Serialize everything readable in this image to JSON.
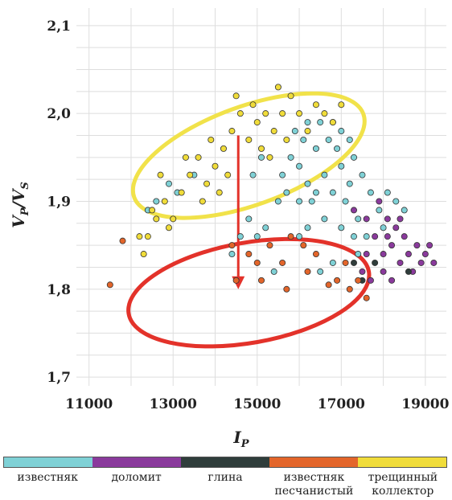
{
  "chart_data": {
    "type": "scatter",
    "xlabel": "I",
    "xlabel_sub": "P",
    "ylabel_parts": [
      "V",
      "P",
      "/V",
      "S"
    ],
    "xlim": [
      10700,
      19500
    ],
    "ylim": [
      1.69,
      2.12
    ],
    "x_ticks": [
      11000,
      13000,
      15000,
      17000,
      19000
    ],
    "x_tick_labels": [
      "11000",
      "13000",
      "15000",
      "17000",
      "19000"
    ],
    "y_ticks": [
      1.7,
      1.8,
      1.9,
      2.0,
      2.1
    ],
    "y_tick_labels": [
      "1,7",
      "1,8",
      "1,9",
      "2,0",
      "2,1"
    ],
    "grid": true,
    "series": [
      {
        "name": "известняк",
        "color": "#7fd1d6",
        "points": [
          {
            "x": 15600,
            "y": 1.93
          },
          {
            "x": 15800,
            "y": 1.95
          },
          {
            "x": 16000,
            "y": 1.94
          },
          {
            "x": 16200,
            "y": 1.92
          },
          {
            "x": 16400,
            "y": 1.96
          },
          {
            "x": 16600,
            "y": 1.93
          },
          {
            "x": 16800,
            "y": 1.91
          },
          {
            "x": 17000,
            "y": 1.94
          },
          {
            "x": 17200,
            "y": 1.92
          },
          {
            "x": 16100,
            "y": 1.97
          },
          {
            "x": 16300,
            "y": 1.9
          },
          {
            "x": 16700,
            "y": 1.97
          },
          {
            "x": 16900,
            "y": 1.96
          },
          {
            "x": 17100,
            "y": 1.9
          },
          {
            "x": 17300,
            "y": 1.95
          },
          {
            "x": 15500,
            "y": 1.9
          },
          {
            "x": 15700,
            "y": 1.91
          },
          {
            "x": 16500,
            "y": 1.99
          },
          {
            "x": 17500,
            "y": 1.93
          },
          {
            "x": 17700,
            "y": 1.91
          },
          {
            "x": 17900,
            "y": 1.89
          },
          {
            "x": 18100,
            "y": 1.91
          },
          {
            "x": 18300,
            "y": 1.9
          },
          {
            "x": 18500,
            "y": 1.89
          },
          {
            "x": 17400,
            "y": 1.88
          },
          {
            "x": 15200,
            "y": 1.87
          },
          {
            "x": 15000,
            "y": 1.86
          },
          {
            "x": 14800,
            "y": 1.88
          },
          {
            "x": 14600,
            "y": 1.86
          },
          {
            "x": 14400,
            "y": 1.84
          },
          {
            "x": 16000,
            "y": 1.86
          },
          {
            "x": 16200,
            "y": 1.87
          },
          {
            "x": 16600,
            "y": 1.88
          },
          {
            "x": 17000,
            "y": 1.87
          },
          {
            "x": 17300,
            "y": 1.86
          },
          {
            "x": 15900,
            "y": 1.98
          },
          {
            "x": 16200,
            "y": 1.99
          },
          {
            "x": 16800,
            "y": 1.99
          },
          {
            "x": 17000,
            "y": 1.98
          },
          {
            "x": 17200,
            "y": 1.97
          },
          {
            "x": 12600,
            "y": 1.9
          },
          {
            "x": 12900,
            "y": 1.92
          },
          {
            "x": 13100,
            "y": 1.91
          },
          {
            "x": 13500,
            "y": 1.93
          },
          {
            "x": 12400,
            "y": 1.89
          },
          {
            "x": 16800,
            "y": 1.83
          },
          {
            "x": 16500,
            "y": 1.82
          },
          {
            "x": 17400,
            "y": 1.84
          },
          {
            "x": 17600,
            "y": 1.86
          },
          {
            "x": 18000,
            "y": 1.87
          },
          {
            "x": 15400,
            "y": 1.82
          },
          {
            "x": 14900,
            "y": 1.93
          },
          {
            "x": 15100,
            "y": 1.95
          },
          {
            "x": 16400,
            "y": 1.91
          },
          {
            "x": 16000,
            "y": 1.9
          }
        ]
      },
      {
        "name": "доломит",
        "color": "#8a3a9c",
        "points": [
          {
            "x": 17800,
            "y": 1.86
          },
          {
            "x": 18000,
            "y": 1.84
          },
          {
            "x": 18200,
            "y": 1.85
          },
          {
            "x": 18400,
            "y": 1.83
          },
          {
            "x": 18600,
            "y": 1.84
          },
          {
            "x": 18800,
            "y": 1.85
          },
          {
            "x": 19000,
            "y": 1.84
          },
          {
            "x": 19200,
            "y": 1.83
          },
          {
            "x": 17600,
            "y": 1.88
          },
          {
            "x": 17900,
            "y": 1.9
          },
          {
            "x": 18100,
            "y": 1.88
          },
          {
            "x": 18300,
            "y": 1.87
          },
          {
            "x": 18500,
            "y": 1.86
          },
          {
            "x": 18700,
            "y": 1.82
          },
          {
            "x": 18900,
            "y": 1.83
          },
          {
            "x": 17500,
            "y": 1.82
          },
          {
            "x": 17700,
            "y": 1.81
          },
          {
            "x": 18000,
            "y": 1.82
          },
          {
            "x": 18200,
            "y": 1.81
          },
          {
            "x": 17300,
            "y": 1.89
          },
          {
            "x": 18400,
            "y": 1.88
          },
          {
            "x": 17600,
            "y": 1.84
          },
          {
            "x": 18100,
            "y": 1.86
          },
          {
            "x": 19100,
            "y": 1.85
          }
        ]
      },
      {
        "name": "глина",
        "color": "#2f3d3b",
        "points": [
          {
            "x": 17300,
            "y": 1.83
          },
          {
            "x": 17500,
            "y": 1.81
          },
          {
            "x": 18600,
            "y": 1.82
          },
          {
            "x": 17800,
            "y": 1.83
          }
        ]
      },
      {
        "name": "известняк песчанистый",
        "color": "#e3652a",
        "points": [
          {
            "x": 11500,
            "y": 1.805
          },
          {
            "x": 11800,
            "y": 1.855
          },
          {
            "x": 14500,
            "y": 1.81
          },
          {
            "x": 15100,
            "y": 1.81
          },
          {
            "x": 15600,
            "y": 1.83
          },
          {
            "x": 16200,
            "y": 1.82
          },
          {
            "x": 16700,
            "y": 1.805
          },
          {
            "x": 17200,
            "y": 1.8
          },
          {
            "x": 14400,
            "y": 1.85
          },
          {
            "x": 15300,
            "y": 1.85
          },
          {
            "x": 15800,
            "y": 1.86
          },
          {
            "x": 16400,
            "y": 1.84
          },
          {
            "x": 17100,
            "y": 1.83
          },
          {
            "x": 15000,
            "y": 1.83
          },
          {
            "x": 15700,
            "y": 1.8
          },
          {
            "x": 16900,
            "y": 1.81
          },
          {
            "x": 17600,
            "y": 1.79
          },
          {
            "x": 16100,
            "y": 1.85
          },
          {
            "x": 14800,
            "y": 1.84
          },
          {
            "x": 17400,
            "y": 1.81
          }
        ]
      },
      {
        "name": "трещинный коллектор",
        "color": "#f0dc3a",
        "points": [
          {
            "x": 12200,
            "y": 1.86
          },
          {
            "x": 12300,
            "y": 1.84
          },
          {
            "x": 12400,
            "y": 1.86
          },
          {
            "x": 12600,
            "y": 1.88
          },
          {
            "x": 12800,
            "y": 1.9
          },
          {
            "x": 13000,
            "y": 1.88
          },
          {
            "x": 13200,
            "y": 1.91
          },
          {
            "x": 13400,
            "y": 1.93
          },
          {
            "x": 13600,
            "y": 1.95
          },
          {
            "x": 13800,
            "y": 1.92
          },
          {
            "x": 14000,
            "y": 1.94
          },
          {
            "x": 14200,
            "y": 1.96
          },
          {
            "x": 14400,
            "y": 1.98
          },
          {
            "x": 14600,
            "y": 2.0
          },
          {
            "x": 14800,
            "y": 1.97
          },
          {
            "x": 15000,
            "y": 1.99
          },
          {
            "x": 15200,
            "y": 2.0
          },
          {
            "x": 15400,
            "y": 1.98
          },
          {
            "x": 15600,
            "y": 2.0
          },
          {
            "x": 15800,
            "y": 2.02
          },
          {
            "x": 16000,
            "y": 2.0
          },
          {
            "x": 16200,
            "y": 1.98
          },
          {
            "x": 16400,
            "y": 2.01
          },
          {
            "x": 16600,
            "y": 2.0
          },
          {
            "x": 16800,
            "y": 1.99
          },
          {
            "x": 17000,
            "y": 2.01
          },
          {
            "x": 14500,
            "y": 2.02
          },
          {
            "x": 14900,
            "y": 2.01
          },
          {
            "x": 15500,
            "y": 2.03
          },
          {
            "x": 13900,
            "y": 1.97
          },
          {
            "x": 13300,
            "y": 1.95
          },
          {
            "x": 12700,
            "y": 1.93
          },
          {
            "x": 14300,
            "y": 1.93
          },
          {
            "x": 15100,
            "y": 1.96
          },
          {
            "x": 15300,
            "y": 1.95
          },
          {
            "x": 12500,
            "y": 1.89
          },
          {
            "x": 12900,
            "y": 1.87
          },
          {
            "x": 13700,
            "y": 1.9
          },
          {
            "x": 14100,
            "y": 1.91
          },
          {
            "x": 15700,
            "y": 1.97
          }
        ]
      }
    ],
    "annotations": [
      {
        "type": "ellipse",
        "color": "#f1e24a",
        "center": {
          "x": 14800,
          "y": 1.952
        },
        "rx_data": 2900,
        "ry_data": 0.056,
        "rotate_deg": -20
      },
      {
        "type": "ellipse",
        "color": "#e3322a",
        "center": {
          "x": 14800,
          "y": 1.796
        },
        "rx_data": 2900,
        "ry_data": 0.057,
        "rotate_deg": -10
      },
      {
        "type": "arrow",
        "color": "#e3322a",
        "from": {
          "x": 14550,
          "y": 1.975
        },
        "to": {
          "x": 14550,
          "y": 1.8
        }
      }
    ]
  },
  "legend": {
    "colors": [
      "#7fd1d6",
      "#8a3a9c",
      "#2f3d3b",
      "#e3652a",
      "#f0dc3a"
    ],
    "labels": [
      "известняк",
      "доломит",
      "глина",
      "известняк\nпесчанистый",
      "трещинный\nколлектор"
    ]
  }
}
